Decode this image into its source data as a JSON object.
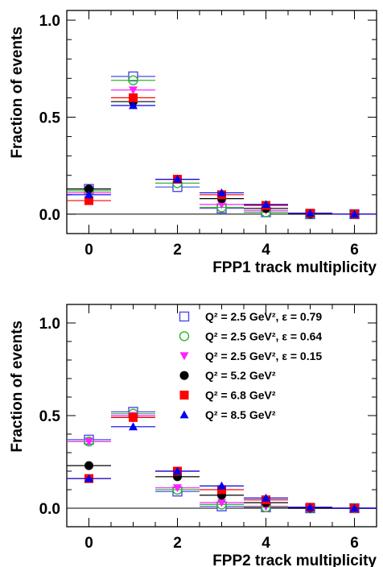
{
  "legend": [
    {
      "label": "Q² = 2.5 GeV², ε = 0.79",
      "marker": "open-square",
      "color": "#4a4ae8"
    },
    {
      "label": "Q² = 2.5 GeV², ε = 0.64",
      "marker": "open-circle",
      "color": "#2db82d"
    },
    {
      "label": "Q² = 2.5 GeV², ε = 0.15",
      "marker": "down-triangle",
      "color": "#ff22ff"
    },
    {
      "label": "Q² = 5.2 GeV²",
      "marker": "circle",
      "color": "#000000"
    },
    {
      "label": "Q² = 6.8 GeV²",
      "marker": "square",
      "color": "#ff0000"
    },
    {
      "label": "Q² = 8.5 GeV²",
      "marker": "up-triangle",
      "color": "#0000ee"
    }
  ],
  "chart_data": [
    {
      "type": "scatter",
      "xlabel": "FPP1 track multiplicity",
      "ylabel": "Fraction of events",
      "xlim": [
        -0.5,
        6.5
      ],
      "ylim": [
        -0.1,
        1.05
      ],
      "xticks": [
        "0",
        "2",
        "4",
        "6"
      ],
      "yticks": [
        "0.0",
        "0.5",
        "1.0"
      ],
      "legend": "none",
      "x": [
        0,
        1,
        2,
        3,
        4,
        5,
        6
      ],
      "series": [
        {
          "values": [
            0.13,
            0.71,
            0.14,
            0.03,
            0.01,
            0.0,
            0.0
          ]
        },
        {
          "values": [
            0.12,
            0.69,
            0.16,
            0.035,
            0.01,
            0.0,
            0.0
          ]
        },
        {
          "values": [
            0.11,
            0.64,
            0.18,
            0.05,
            0.02,
            0.0,
            0.0
          ]
        },
        {
          "values": [
            0.13,
            0.58,
            0.18,
            0.08,
            0.03,
            0.0,
            0.0
          ]
        },
        {
          "values": [
            0.07,
            0.6,
            0.18,
            0.1,
            0.045,
            0.005,
            0.0
          ]
        },
        {
          "values": [
            0.1,
            0.56,
            0.18,
            0.11,
            0.05,
            0.005,
            0.0
          ]
        }
      ]
    },
    {
      "type": "scatter",
      "xlabel": "FPP2 track multiplicity",
      "ylabel": "Fraction of events",
      "xlim": [
        -0.5,
        6.5
      ],
      "ylim": [
        -0.1,
        1.1
      ],
      "xticks": [
        "0",
        "2",
        "4",
        "6"
      ],
      "yticks": [
        "0.0",
        "0.5",
        "1.0"
      ],
      "legend": "top-right",
      "x": [
        0,
        1,
        2,
        3,
        4,
        5,
        6
      ],
      "series": [
        {
          "values": [
            0.37,
            0.52,
            0.09,
            0.01,
            0.005,
            0.0,
            0.0
          ]
        },
        {
          "values": [
            0.36,
            0.51,
            0.1,
            0.02,
            0.005,
            0.0,
            0.0
          ]
        },
        {
          "values": [
            0.36,
            0.5,
            0.11,
            0.03,
            0.01,
            0.0,
            0.0
          ]
        },
        {
          "values": [
            0.23,
            0.49,
            0.17,
            0.07,
            0.03,
            0.0,
            0.0
          ]
        },
        {
          "values": [
            0.16,
            0.49,
            0.2,
            0.1,
            0.045,
            0.005,
            0.0
          ]
        },
        {
          "values": [
            0.16,
            0.44,
            0.2,
            0.12,
            0.055,
            0.005,
            0.0
          ]
        }
      ]
    }
  ]
}
